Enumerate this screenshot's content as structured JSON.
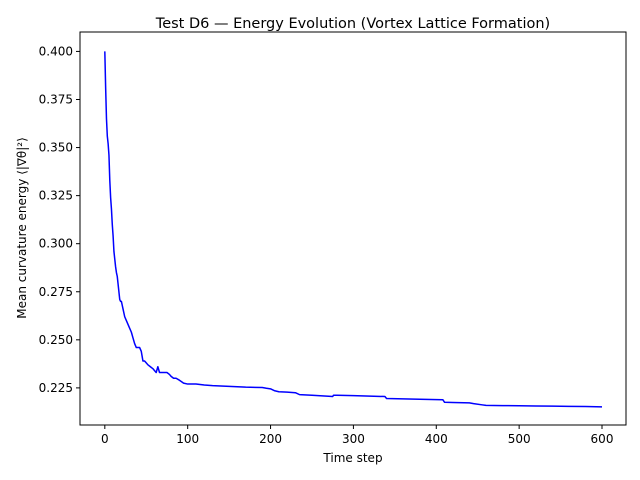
{
  "chart_data": {
    "type": "line",
    "title": "Test D6 — Energy Evolution (Vortex Lattice Formation)",
    "xlabel": "Time step",
    "ylabel": "Mean curvature energy ⟨|∇θ|²⟩",
    "xlim": [
      -29.95,
      628.95
    ],
    "ylim": [
      0.2057,
      0.4101
    ],
    "xticks": [
      0,
      100,
      200,
      300,
      400,
      500,
      600
    ],
    "yticks": [
      0.225,
      0.25,
      0.275,
      0.3,
      0.325,
      0.35,
      0.375,
      0.4
    ],
    "xtick_labels": [
      "0",
      "100",
      "200",
      "300",
      "400",
      "500",
      "600"
    ],
    "ytick_labels": [
      "0.225",
      "0.250",
      "0.275",
      "0.300",
      "0.325",
      "0.350",
      "0.375",
      "0.400"
    ],
    "grid": false,
    "series": [
      {
        "color": "#0000ff",
        "x": [
          0,
          1,
          2,
          3,
          4,
          5,
          6,
          7,
          8,
          9,
          10,
          11,
          12,
          13,
          14,
          15,
          16,
          18,
          19,
          20,
          22,
          24,
          26,
          28,
          30,
          32,
          34,
          36,
          38,
          40,
          42,
          44,
          46,
          48,
          50,
          52,
          55,
          58,
          60,
          62,
          64,
          66,
          68,
          70,
          72,
          75,
          78,
          80,
          83,
          86,
          90,
          95,
          100,
          110,
          120,
          130,
          150,
          170,
          190,
          195,
          200,
          205,
          210,
          220,
          230,
          235,
          250,
          275,
          276,
          280,
          300,
          338,
          340,
          360,
          380,
          408,
          410,
          420,
          440,
          445,
          455,
          460,
          480,
          500,
          520,
          540,
          560,
          580,
          600
        ],
        "y": [
          0.4,
          0.381,
          0.365,
          0.356,
          0.352,
          0.346,
          0.333,
          0.324,
          0.318,
          0.31,
          0.304,
          0.296,
          0.292,
          0.288,
          0.285,
          0.283,
          0.279,
          0.271,
          0.27,
          0.27,
          0.266,
          0.262,
          0.26,
          0.258,
          0.256,
          0.254,
          0.251,
          0.248,
          0.246,
          0.246,
          0.246,
          0.244,
          0.239,
          0.239,
          0.238,
          0.237,
          0.236,
          0.235,
          0.234,
          0.233,
          0.236,
          0.233,
          0.233,
          0.233,
          0.233,
          0.233,
          0.232,
          0.231,
          0.23,
          0.23,
          0.229,
          0.2275,
          0.227,
          0.227,
          0.2265,
          0.2262,
          0.2258,
          0.2254,
          0.2252,
          0.2248,
          0.2245,
          0.2235,
          0.223,
          0.2228,
          0.2225,
          0.2215,
          0.2212,
          0.2205,
          0.2212,
          0.2212,
          0.221,
          0.2205,
          0.2195,
          0.2193,
          0.2191,
          0.2188,
          0.2175,
          0.2174,
          0.2172,
          0.2168,
          0.2162,
          0.2159,
          0.2158,
          0.2157,
          0.2156,
          0.2155,
          0.2154,
          0.2153,
          0.2151
        ]
      }
    ]
  }
}
